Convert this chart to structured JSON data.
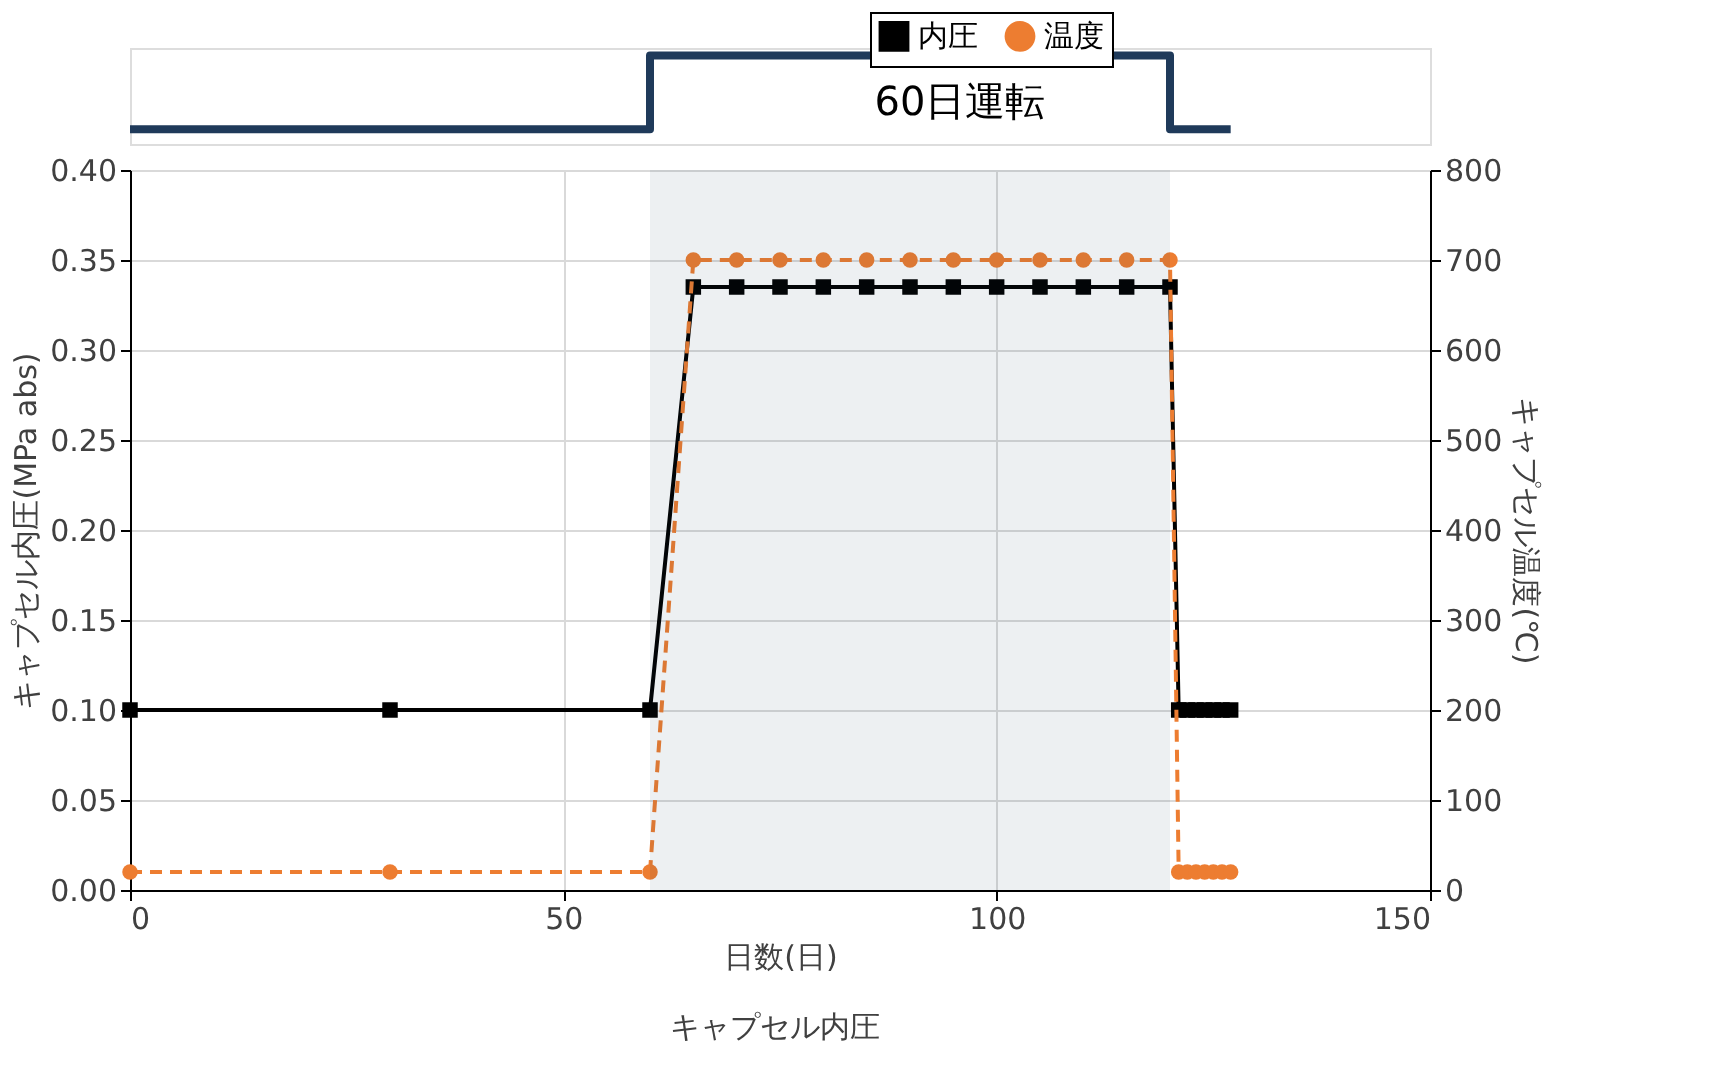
{
  "chart_data": {
    "type": "line",
    "title": "キャプセル内圧",
    "xlabel": "日数(日)",
    "ylabel": "キャプセル内圧(MPa abs)",
    "y2label": "キャプセル温度(℃)",
    "series": [
      {
        "name": "内圧",
        "color": "#000000",
        "marker": "square",
        "line_style": "solid",
        "x": [
          0,
          30,
          60,
          65,
          70,
          75,
          80,
          85,
          90,
          95,
          100,
          105,
          110,
          115,
          120,
          121,
          122,
          123,
          124,
          125,
          126,
          127
        ],
        "values": [
          0.1,
          0.1,
          0.1,
          0.335,
          0.335,
          0.335,
          0.335,
          0.335,
          0.335,
          0.335,
          0.335,
          0.335,
          0.335,
          0.335,
          0.335,
          0.1,
          0.1,
          0.1,
          0.1,
          0.1,
          0.1,
          0.1
        ]
      },
      {
        "name": "温度",
        "color": "#ed7d31",
        "marker": "circle",
        "line_style": "dashed",
        "axis": "y2",
        "x": [
          0,
          30,
          60,
          65,
          70,
          75,
          80,
          85,
          90,
          95,
          100,
          105,
          110,
          115,
          120,
          121,
          122,
          123,
          124,
          125,
          126,
          127
        ],
        "values": [
          20,
          20,
          20,
          700,
          700,
          700,
          700,
          700,
          700,
          700,
          700,
          700,
          700,
          700,
          700,
          20,
          20,
          20,
          20,
          20,
          20,
          20
        ]
      }
    ],
    "xlim": [
      0,
      150
    ],
    "xticks": [
      0,
      50,
      100,
      150
    ],
    "ylim": [
      0,
      0.4
    ],
    "yticks": [
      {
        "value": 0,
        "label": "0.00"
      },
      {
        "value": 0.05,
        "label": "0.05"
      },
      {
        "value": 0.1,
        "label": "0.10"
      },
      {
        "value": 0.15,
        "label": "0.15"
      },
      {
        "value": 0.2,
        "label": "0.20"
      },
      {
        "value": 0.25,
        "label": "0.25"
      },
      {
        "value": 0.3,
        "label": "0.30"
      },
      {
        "value": 0.35,
        "label": "0.35"
      },
      {
        "value": 0.4,
        "label": "0.40"
      }
    ],
    "y2lim": [
      0,
      800
    ],
    "y2ticks": [
      0,
      100,
      200,
      300,
      400,
      500,
      600,
      700,
      800
    ],
    "bands": [
      {
        "axis": "x",
        "from": 60,
        "to": 120,
        "label": "60日運転",
        "color": "#1f3a5a"
      }
    ],
    "grid": true,
    "legend": "top right"
  }
}
